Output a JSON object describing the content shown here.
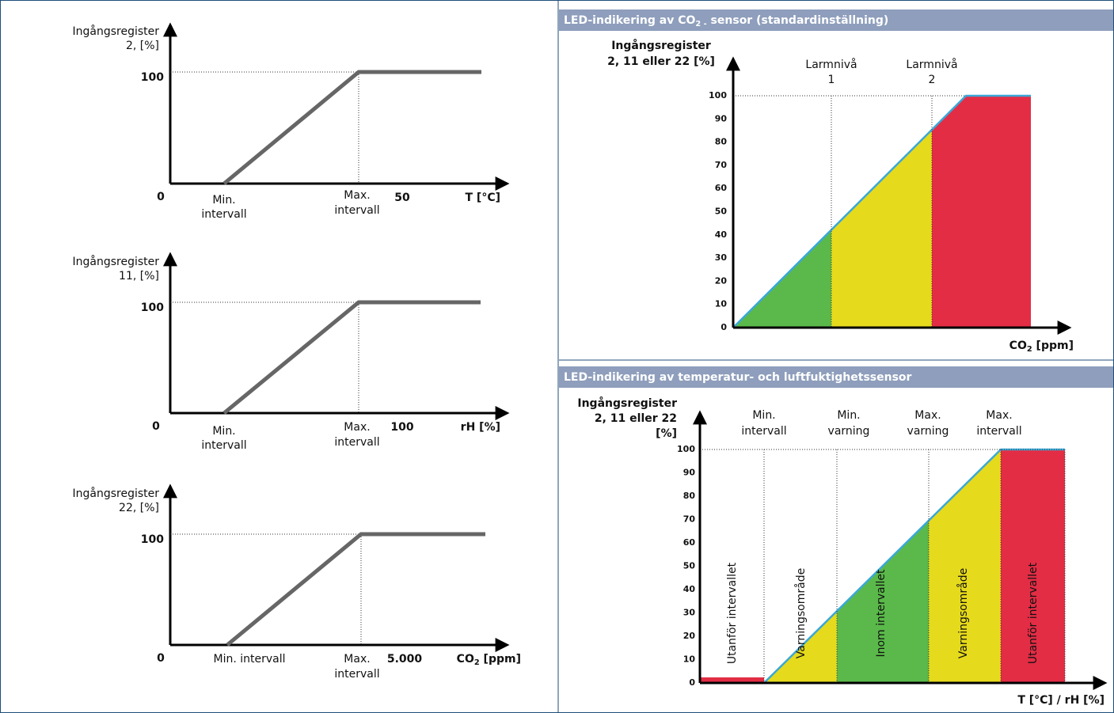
{
  "left_charts": [
    {
      "y_label": [
        "Ingångsregister",
        "2, [%]"
      ],
      "level": "100",
      "origin": "0",
      "min": [
        "Min.",
        "intervall"
      ],
      "max": [
        "Max.",
        "intervall"
      ],
      "x_value": "50",
      "x_unit": {
        "text": "T [°C]"
      }
    },
    {
      "y_label": [
        "Ingångsregister",
        "11, [%]"
      ],
      "level": "100",
      "origin": "0",
      "min": [
        "Min.",
        "intervall"
      ],
      "max": [
        "Max.",
        "intervall"
      ],
      "x_value": "100",
      "x_unit": {
        "text": "rH [%]"
      }
    },
    {
      "y_label": [
        "Ingångsregister",
        "22, [%]"
      ],
      "level": "100",
      "origin": "0",
      "min": [
        "Min. intervall"
      ],
      "max": [
        "Max.",
        "intervall"
      ],
      "x_value": "5.000",
      "x_unit": {
        "text": "CO",
        "sub": "2",
        "suffix": " [ppm]"
      }
    }
  ],
  "co2_panel": {
    "header": {
      "text": "LED-indikering av CO",
      "sub": "2 -",
      "suffix": " sensor (standardinställning)"
    },
    "y_label": [
      "Ingångsregister",
      "2, 11 eller 22 [%]"
    ],
    "yticks": [
      0,
      10,
      20,
      30,
      40,
      50,
      60,
      70,
      80,
      90,
      100
    ],
    "levels": [
      [
        "Larmnivå",
        "1"
      ],
      [
        "Larmnivå",
        "2"
      ]
    ],
    "x_unit": {
      "text": "CO",
      "sub": "2",
      "suffix": " [ppm]"
    }
  },
  "temp_panel": {
    "header": {
      "text": "LED-indikering av temperatur- och luftfuktighetssensor"
    },
    "y_label": [
      "Ingångsregister",
      "2, 11 eller 22",
      "[%]"
    ],
    "yticks": [
      0,
      10,
      20,
      30,
      40,
      50,
      60,
      70,
      80,
      90,
      100
    ],
    "limits": [
      [
        "Min.",
        "intervall"
      ],
      [
        "Min.",
        "varning"
      ],
      [
        "Max.",
        "varning"
      ],
      [
        "Max.",
        "intervall"
      ]
    ],
    "zones": [
      "Utanför intervallet",
      "Varningsområde",
      "Inom intervallet",
      "Varningsområde",
      "Utanför intervallet"
    ],
    "x_unit": {
      "text": "T [°C] / rH [%]"
    }
  }
}
